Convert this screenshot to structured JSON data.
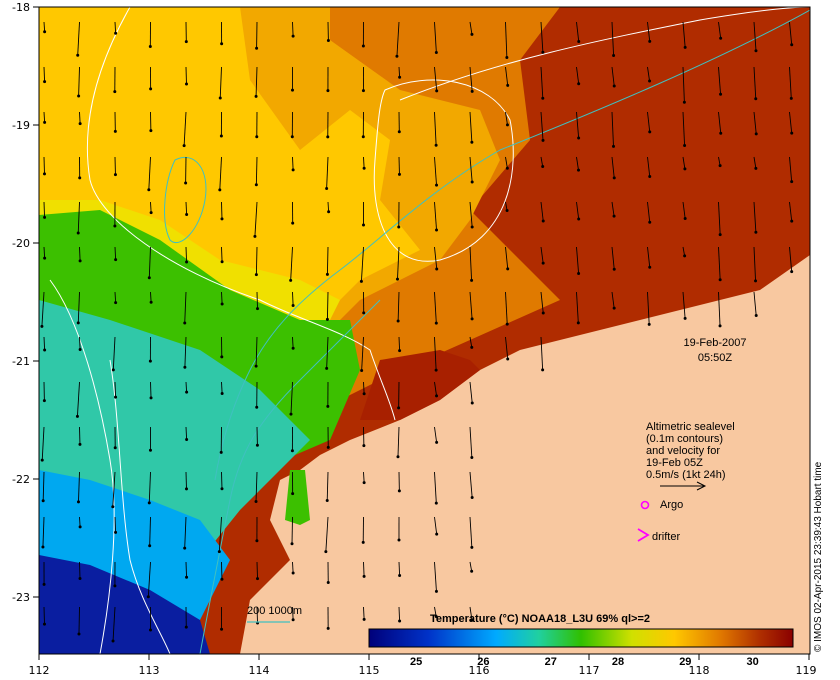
{
  "map": {
    "lon_min": 112,
    "lon_max": 119,
    "lat_min": -23.5,
    "lat_max": -18,
    "lon_ticks": [
      "112",
      "113",
      "114",
      "115",
      "116",
      "117",
      "118",
      "119"
    ],
    "lat_ticks": [
      "-18",
      "-19",
      "-20",
      "-21",
      "-22",
      "-23"
    ],
    "land_color": "#f8c8a0",
    "timestamp": {
      "date": "19-Feb-2007",
      "time": "05:50Z"
    },
    "legend": {
      "line1": "Altimetric sealevel",
      "line2": "(0.1m contours)",
      "line3": "and velocity for",
      "line4": "19-Feb 05Z",
      "line5": "0.5m/s (1kt 24h)",
      "argo": "Argo",
      "argo_color": "#ff00ff",
      "drifter": "drifter",
      "drifter_color": "#ff00ff"
    },
    "bathy": {
      "label": "200  1000m",
      "color": "#40c0c0"
    },
    "colorbar": {
      "title": "Temperature (°C) NOAA18_L3U 69% ql>=2",
      "range": [
        24.3,
        30.6
      ],
      "ticks": [
        "25",
        "26",
        "27",
        "28",
        "29",
        "30"
      ]
    },
    "credit": "© IMOS 02-Apr-2015 23:39:43 Hobart time"
  }
}
